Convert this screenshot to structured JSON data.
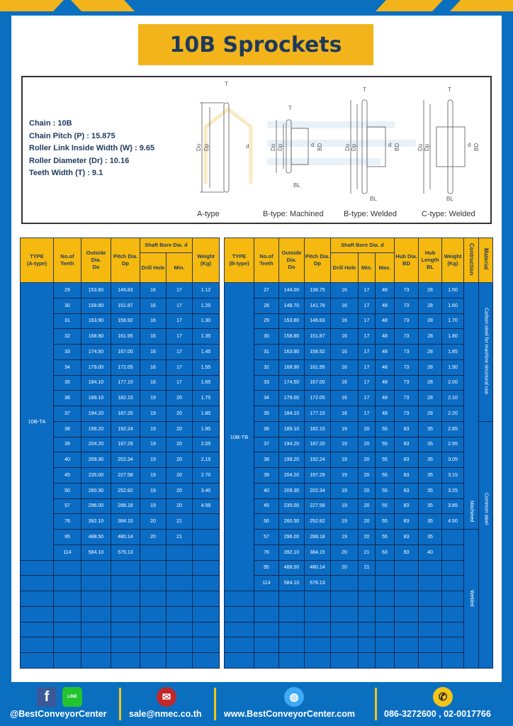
{
  "title": "10B Sprockets",
  "colors": {
    "background": "#0b6fc0",
    "accent": "#f3b41b",
    "table_body": "#0b6cc4",
    "heading_text": "#1d3a5c"
  },
  "specs": [
    "Chain  :  10B",
    "Chain Pitch (P)  :  15.875",
    "Roller Link Inside Width (W) : 9.65",
    "Roller Diameter (Dr) : 10.16",
    "Teeth Width (T)  :  9.1"
  ],
  "diagram": {
    "captions": [
      "A-type",
      "B-type: Machined",
      "B-type: Welded",
      "C-type: Welded"
    ],
    "labels": {
      "T": "T",
      "Do": "Do",
      "Dp": "Dp",
      "d": "d",
      "BD": "BD",
      "BL": "BL"
    },
    "watermark": "BEST CONVEYOR CENTER"
  },
  "table_a": {
    "headers": {
      "type": "TYPE",
      "type_sub": "(A-type)",
      "teeth": "No.of",
      "teeth_sub": "Teeth",
      "do": "Outside",
      "do_sub": "Dia.",
      "do_sub2": "Do",
      "dp": "Pitch Dia.",
      "dp_sub": "Dp",
      "bore": "Shaft Bore Dia. d",
      "drill": "Drill Hole",
      "min": "Min.",
      "weight": "Weight",
      "weight_sub": "(Kg)"
    },
    "type_value": "10B-TA",
    "rows": [
      [
        "29",
        "153.80",
        "146.83",
        "16",
        "17",
        "1.12"
      ],
      [
        "30",
        "158.80",
        "151.87",
        "16",
        "17",
        "1.20"
      ],
      [
        "31",
        "163.90",
        "156.92",
        "16",
        "17",
        "1.30"
      ],
      [
        "32",
        "168.90",
        "161.95",
        "16",
        "17",
        "1.35"
      ],
      [
        "33",
        "174.50",
        "167.00",
        "16",
        "17",
        "1.45"
      ],
      [
        "34",
        "179.00",
        "172.05",
        "16",
        "17",
        "1.55"
      ],
      [
        "35",
        "184.10",
        "177.10",
        "16",
        "17",
        "1.65"
      ],
      [
        "36",
        "189.10",
        "182.15",
        "19",
        "20",
        "1.75"
      ],
      [
        "37",
        "194.20",
        "187.20",
        "19",
        "20",
        "1.85"
      ],
      [
        "38",
        "199.20",
        "192.24",
        "19",
        "20",
        "1.95"
      ],
      [
        "39",
        "204.20",
        "197.29",
        "19",
        "20",
        "2.05"
      ],
      [
        "40",
        "209.30",
        "202.34",
        "19",
        "20",
        "2.15"
      ],
      [
        "45",
        "235.00",
        "227.58",
        "19",
        "20",
        "2.70"
      ],
      [
        "50",
        "260.30",
        "252.82",
        "19",
        "20",
        "3.40"
      ],
      [
        "57",
        "296.00",
        "288.18",
        "19",
        "20",
        "4.59"
      ],
      [
        "76",
        "392.10",
        "384.15",
        "20",
        "21",
        ""
      ],
      [
        "95",
        "488.50",
        "480.14",
        "20",
        "21",
        ""
      ],
      [
        "114",
        "584.10",
        "576.13",
        "",
        "",
        ""
      ]
    ]
  },
  "table_b": {
    "headers": {
      "type": "TYPE",
      "type_sub": "(B-type)",
      "teeth": "No.of",
      "teeth_sub": "Teeth",
      "do": "Outside",
      "do_sub": "Dia.",
      "do_sub2": "Do",
      "dp": "Pitch Dia.",
      "dp_sub": "Dp",
      "bore": "Shaft Bore Dia. d",
      "drill": "Drill Hole",
      "min": "Min.",
      "max": "Max.",
      "hub": "Hub Dia.",
      "hub_sub": "BD",
      "hubl": "Hub",
      "hubl_sub": "Length",
      "hubl_sub2": "BL",
      "weight": "Weight",
      "weight_sub": "(Kg)",
      "construction": "Contruction",
      "material": "Material"
    },
    "type_value": "10B-TB",
    "construction": [
      "Machined",
      "Welded"
    ],
    "material": [
      "Carbon steel for machine structural use",
      "Common steel"
    ],
    "rows": [
      [
        "27",
        "144.00",
        "136.75",
        "16",
        "17",
        "48",
        "73",
        "28",
        "1.50"
      ],
      [
        "28",
        "148.70",
        "141.78",
        "16",
        "17",
        "48",
        "73",
        "28",
        "1.60"
      ],
      [
        "29",
        "153.80",
        "146.83",
        "16",
        "17",
        "48",
        "73",
        "28",
        "1.70"
      ],
      [
        "30",
        "158.80",
        "151.87",
        "16",
        "17",
        "48",
        "73",
        "28",
        "1.80"
      ],
      [
        "31",
        "163.90",
        "156.92",
        "16",
        "17",
        "48",
        "73",
        "28",
        "1.85"
      ],
      [
        "32",
        "168.90",
        "161.95",
        "16",
        "17",
        "48",
        "73",
        "28",
        "1.90"
      ],
      [
        "33",
        "174.50",
        "167.00",
        "16",
        "17",
        "48",
        "73",
        "28",
        "2.00"
      ],
      [
        "34",
        "179.00",
        "172.05",
        "16",
        "17",
        "48",
        "73",
        "28",
        "2.10"
      ],
      [
        "35",
        "184.10",
        "177.10",
        "16",
        "17",
        "48",
        "73",
        "28",
        "2.20"
      ],
      [
        "36",
        "189.10",
        "182.15",
        "19",
        "20",
        "55",
        "83",
        "35",
        "2.85"
      ],
      [
        "37",
        "194.20",
        "187.20",
        "19",
        "20",
        "55",
        "83",
        "35",
        "2.95"
      ],
      [
        "38",
        "199.20",
        "192.24",
        "19",
        "20",
        "55",
        "83",
        "35",
        "3.05"
      ],
      [
        "39",
        "204.20",
        "197.29",
        "19",
        "20",
        "55",
        "83",
        "35",
        "3.15"
      ],
      [
        "40",
        "209.30",
        "202.34",
        "19",
        "20",
        "55",
        "83",
        "35",
        "3.25"
      ],
      [
        "45",
        "235.00",
        "227.58",
        "19",
        "20",
        "55",
        "83",
        "35",
        "3.85"
      ],
      [
        "50",
        "260.30",
        "252.82",
        "19",
        "20",
        "55",
        "83",
        "35",
        "4.50"
      ],
      [
        "57",
        "296.00",
        "288.18",
        "19",
        "20",
        "55",
        "83",
        "35",
        ""
      ],
      [
        "76",
        "392.10",
        "384.15",
        "20",
        "21",
        "63",
        "93",
        "40",
        ""
      ],
      [
        "95",
        "488.50",
        "480.14",
        "20",
        "21",
        "",
        "",
        "",
        ""
      ],
      [
        "114",
        "584.10",
        "576.13",
        "",
        "",
        "",
        "",
        "",
        ""
      ]
    ]
  },
  "footer": {
    "social": "@BestConveyorCenter",
    "line_label": "LINE",
    "email": "sale@nmec.co.th",
    "website": "www.BestConveyorCenter.com",
    "phone": "086-3272600 , 02-0017766"
  }
}
